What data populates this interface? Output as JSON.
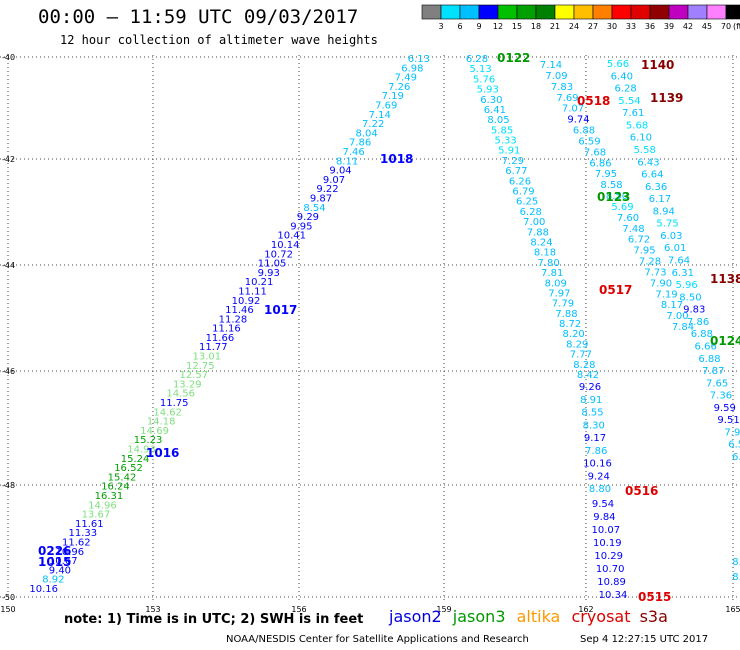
{
  "header": {
    "title": "00:00 – 11:59 UTC 09/03/2017",
    "subtitle": "12 hour collection of altimeter wave heights"
  },
  "colorbar": {
    "labels": [
      "3",
      "6",
      "9",
      "12",
      "15",
      "18",
      "21",
      "24",
      "27",
      "30",
      "33",
      "36",
      "39",
      "42",
      "45",
      "70"
    ],
    "unit": "(ft)",
    "colors": [
      "#808080",
      "#00e0ff",
      "#00bfff",
      "#0000ff",
      "#00c000",
      "#00a000",
      "#008000",
      "#ffff00",
      "#ffbf00",
      "#ff8000",
      "#ff0000",
      "#e00000",
      "#900000",
      "#c000c0",
      "#a080ff",
      "#ff80ff",
      "#000000"
    ]
  },
  "axes": {
    "lat_labels": [
      "-40",
      "-42",
      "-44",
      "-46",
      "-48",
      "-50"
    ],
    "lon_labels": [
      "150",
      "153",
      "156",
      "159",
      "162",
      "165"
    ]
  },
  "footer": {
    "note": "note:  1) Time is in UTC;  2) SWH is in feet",
    "credit": "NOAA/NESDIS Center for Satellite Applications and Research",
    "timestamp": "Sep  4 12:27:15 UTC 2017",
    "legend": [
      {
        "name": "jason2",
        "color": "#0000dd"
      },
      {
        "name": "jason3",
        "color": "#009900"
      },
      {
        "name": "altika",
        "color": "#ff9900"
      },
      {
        "name": "cryosat",
        "color": "#dd0000"
      },
      {
        "name": "s3a",
        "color": "#880000"
      }
    ]
  },
  "tracks": [
    {
      "id": "t1015",
      "sat": "jason2",
      "time_label": "1015",
      "time_color": "#0000ff",
      "points": [
        [
          "6.13",
          "#00bfff"
        ],
        [
          "6.98",
          "#00bfff"
        ],
        [
          "7.49",
          "#00bfff"
        ],
        [
          "7.26",
          "#00bfff"
        ],
        [
          "7.19",
          "#00bfff"
        ],
        [
          "7.69",
          "#00bfff"
        ],
        [
          "7.14",
          "#00bfff"
        ],
        [
          "7.22",
          "#00bfff"
        ],
        [
          "8.04",
          "#00bfff"
        ],
        [
          "7.86",
          "#00bfff"
        ],
        [
          "7.46",
          "#00bfff"
        ],
        [
          "8.11",
          "#00bfff"
        ],
        [
          "9.04",
          "#0000ff"
        ],
        [
          "9.07",
          "#0000ff"
        ],
        [
          "9.22",
          "#0000ff"
        ],
        [
          "9.87",
          "#0000ff"
        ],
        [
          "8.54",
          "#00bfff"
        ],
        [
          "9.29",
          "#0000ff"
        ],
        [
          "9.95",
          "#0000ff"
        ],
        [
          "10.41",
          "#0000ff"
        ],
        [
          "10.14",
          "#0000ff"
        ],
        [
          "10.72",
          "#0000ff"
        ],
        [
          "11.05",
          "#0000ff"
        ],
        [
          "9.93",
          "#0000ff"
        ],
        [
          "10.21",
          "#0000ff"
        ],
        [
          "11.11",
          "#0000ff"
        ],
        [
          "10.92",
          "#0000ff"
        ],
        [
          "11.46",
          "#0000ff"
        ],
        [
          "11.28",
          "#0000ff"
        ],
        [
          "11.16",
          "#0000ff"
        ],
        [
          "11.66",
          "#0000ff"
        ],
        [
          "11.77",
          "#0000ff"
        ],
        [
          "13.01",
          "#80e080"
        ],
        [
          "12.75",
          "#80e080"
        ],
        [
          "12.57",
          "#80e080"
        ],
        [
          "13.29",
          "#80e080"
        ],
        [
          "14.56",
          "#80e080"
        ],
        [
          "11.75",
          "#0000ff"
        ],
        [
          "14.62",
          "#80e080"
        ],
        [
          "14.18",
          "#80e080"
        ],
        [
          "14.69",
          "#80e080"
        ],
        [
          "15.23",
          "#00a000"
        ],
        [
          "14.93",
          "#80e080"
        ],
        [
          "15.24",
          "#00a000"
        ],
        [
          "16.52",
          "#00a000"
        ],
        [
          "15.42",
          "#00a000"
        ],
        [
          "16.24",
          "#00a000"
        ],
        [
          "16.31",
          "#00a000"
        ],
        [
          "14.96",
          "#80e080"
        ],
        [
          "13.67",
          "#80e080"
        ],
        [
          "11.61",
          "#0000ff"
        ],
        [
          "11.33",
          "#0000ff"
        ],
        [
          "11.62",
          "#0000ff"
        ],
        [
          "10.96",
          "#0000ff"
        ],
        [
          "10.67",
          "#0000ff"
        ],
        [
          "9.40",
          "#0000ff"
        ],
        [
          "8.92",
          "#00bfff"
        ],
        [
          "10.16",
          "#0000ff"
        ]
      ]
    },
    {
      "id": "t0122",
      "sat": "jason3",
      "time_label": "0122",
      "time_color": "#009900",
      "points": [
        [
          "6.28",
          "#00bfff"
        ],
        [
          "5.13",
          "#00e0ff"
        ],
        [
          "5.76",
          "#00e0ff"
        ],
        [
          "5.93",
          "#00e0ff"
        ],
        [
          "6.30",
          "#00bfff"
        ],
        [
          "6.41",
          "#00bfff"
        ],
        [
          "8.05",
          "#00bfff"
        ],
        [
          "5.85",
          "#00e0ff"
        ],
        [
          "5.33",
          "#00e0ff"
        ],
        [
          "5.91",
          "#00e0ff"
        ],
        [
          "7.29",
          "#00bfff"
        ],
        [
          "6.77",
          "#00bfff"
        ],
        [
          "6.26",
          "#00bfff"
        ],
        [
          "6.79",
          "#00bfff"
        ],
        [
          "6.25",
          "#00bfff"
        ],
        [
          "6.28",
          "#00bfff"
        ],
        [
          "7.00",
          "#00bfff"
        ],
        [
          "7.88",
          "#00bfff"
        ],
        [
          "8.24",
          "#00bfff"
        ],
        [
          "8.18",
          "#00bfff"
        ],
        [
          "7.80",
          "#00bfff"
        ],
        [
          "7.81",
          "#00bfff"
        ],
        [
          "8.09",
          "#00bfff"
        ],
        [
          "7.97",
          "#00bfff"
        ],
        [
          "7.79",
          "#00bfff"
        ],
        [
          "7.88",
          "#00bfff"
        ],
        [
          "8.72",
          "#00bfff"
        ],
        [
          "8.20",
          "#00bfff"
        ],
        [
          "8.29",
          "#00bfff"
        ],
        [
          "7.77",
          "#00bfff"
        ],
        [
          "8.28",
          "#00bfff"
        ],
        [
          "8.42",
          "#00bfff"
        ]
      ]
    },
    {
      "id": "t0518",
      "sat": "cryosat",
      "time_label": "0518",
      "time_color": "#dd0000",
      "points": [
        [
          "7.14",
          "#00bfff"
        ],
        [
          "7.09",
          "#00bfff"
        ],
        [
          "7.83",
          "#00bfff"
        ],
        [
          "7.69",
          "#00bfff"
        ],
        [
          "7.07",
          "#00bfff"
        ],
        [
          "9.74",
          "#0000ff"
        ],
        [
          "6.88",
          "#00bfff"
        ],
        [
          "6.59",
          "#00bfff"
        ],
        [
          "7.68",
          "#00bfff"
        ],
        [
          "6.86",
          "#00bfff"
        ],
        [
          "7.95",
          "#00bfff"
        ],
        [
          "8.58",
          "#00bfff"
        ],
        [
          "8.50",
          "#00bfff"
        ],
        [
          "5.69",
          "#00e0ff"
        ],
        [
          "7.60",
          "#00bfff"
        ],
        [
          "7.48",
          "#00bfff"
        ],
        [
          "6.72",
          "#00bfff"
        ],
        [
          "7.95",
          "#00bfff"
        ],
        [
          "7.28",
          "#00bfff"
        ],
        [
          "7.73",
          "#00bfff"
        ],
        [
          "7.90",
          "#00bfff"
        ],
        [
          "7.19",
          "#00bfff"
        ],
        [
          "8.17",
          "#00bfff"
        ],
        [
          "7.00",
          "#00bfff"
        ],
        [
          "7.84",
          "#00bfff"
        ]
      ]
    },
    {
      "id": "t0123",
      "sat": "jason3",
      "time_label": "0123",
      "time_color": "#009900",
      "points": [
        [
          "5.66",
          "#00e0ff"
        ],
        [
          "6.40",
          "#00bfff"
        ],
        [
          "6.28",
          "#00bfff"
        ],
        [
          "5.54",
          "#00e0ff"
        ],
        [
          "7.61",
          "#00bfff"
        ],
        [
          "5.68",
          "#00e0ff"
        ],
        [
          "6.10",
          "#00bfff"
        ],
        [
          "5.58",
          "#00e0ff"
        ],
        [
          "6.43",
          "#00bfff"
        ],
        [
          "6.64",
          "#00bfff"
        ],
        [
          "6.36",
          "#00bfff"
        ],
        [
          "6.17",
          "#00bfff"
        ],
        [
          "8.94",
          "#00bfff"
        ],
        [
          "5.75",
          "#00e0ff"
        ],
        [
          "6.03",
          "#00bfff"
        ],
        [
          "6.01",
          "#00bfff"
        ],
        [
          "7.64",
          "#00bfff"
        ],
        [
          "6.31",
          "#00bfff"
        ],
        [
          "5.96",
          "#00e0ff"
        ],
        [
          "8.50",
          "#00bfff"
        ],
        [
          "9.83",
          "#0000ff"
        ],
        [
          "7.86",
          "#00bfff"
        ],
        [
          "6.88",
          "#00bfff"
        ],
        [
          "6.66",
          "#00bfff"
        ],
        [
          "6.88",
          "#00bfff"
        ],
        [
          "7.87",
          "#00bfff"
        ],
        [
          "7.65",
          "#00bfff"
        ],
        [
          "7.36",
          "#00bfff"
        ],
        [
          "9.59",
          "#0000ff"
        ],
        [
          "9.51",
          "#0000ff"
        ],
        [
          "7.9",
          "#00bfff"
        ],
        [
          "6.5",
          "#00bfff"
        ],
        [
          "6.8",
          "#00bfff"
        ]
      ]
    },
    {
      "id": "t0517",
      "sat": "cryosat",
      "time_label": "0517",
      "time_color": "#dd0000",
      "points": [
        [
          "9.26",
          "#0000ff"
        ],
        [
          "8.91",
          "#00bfff"
        ],
        [
          "8.55",
          "#00bfff"
        ],
        [
          "8.30",
          "#00bfff"
        ],
        [
          "9.17",
          "#0000ff"
        ],
        [
          "7.86",
          "#00bfff"
        ],
        [
          "10.16",
          "#0000ff"
        ],
        [
          "9.24",
          "#0000ff"
        ],
        [
          "8.80",
          "#00bfff"
        ]
      ]
    },
    {
      "id": "t0515",
      "sat": "cryosat",
      "time_label": "0515",
      "time_color": "#dd0000",
      "points": [
        [
          "9.54",
          "#0000ff"
        ],
        [
          "9.84",
          "#0000ff"
        ],
        [
          "10.07",
          "#0000ff"
        ],
        [
          "10.19",
          "#0000ff"
        ],
        [
          "10.29",
          "#0000ff"
        ],
        [
          "10.70",
          "#0000ff"
        ],
        [
          "10.89",
          "#0000ff"
        ],
        [
          "10.34",
          "#0000ff"
        ]
      ]
    },
    {
      "id": "t0124",
      "sat": "jason3",
      "time_label": "0124",
      "time_color": "#009900",
      "points": [
        [
          "8.",
          "#00bfff"
        ],
        [
          "8.",
          "#00bfff"
        ]
      ]
    }
  ],
  "time_labels": [
    {
      "text": "1018",
      "color": "#0000ff"
    },
    {
      "text": "1017",
      "color": "#0000ff"
    },
    {
      "text": "1016",
      "color": "#0000ff"
    },
    {
      "text": "0226",
      "color": "#0000ff"
    },
    {
      "text": "1015",
      "color": "#0000ff"
    },
    {
      "text": "0122",
      "color": "#009900"
    },
    {
      "text": "0518",
      "color": "#dd0000"
    },
    {
      "text": "0123",
      "color": "#009900"
    },
    {
      "text": "0517",
      "color": "#dd0000"
    },
    {
      "text": "0516",
      "color": "#dd0000"
    },
    {
      "text": "0515",
      "color": "#dd0000"
    },
    {
      "text": "0124",
      "color": "#009900"
    },
    {
      "text": "1140",
      "color": "#880000"
    },
    {
      "text": "1139",
      "color": "#880000"
    },
    {
      "text": "1138",
      "color": "#880000"
    }
  ]
}
